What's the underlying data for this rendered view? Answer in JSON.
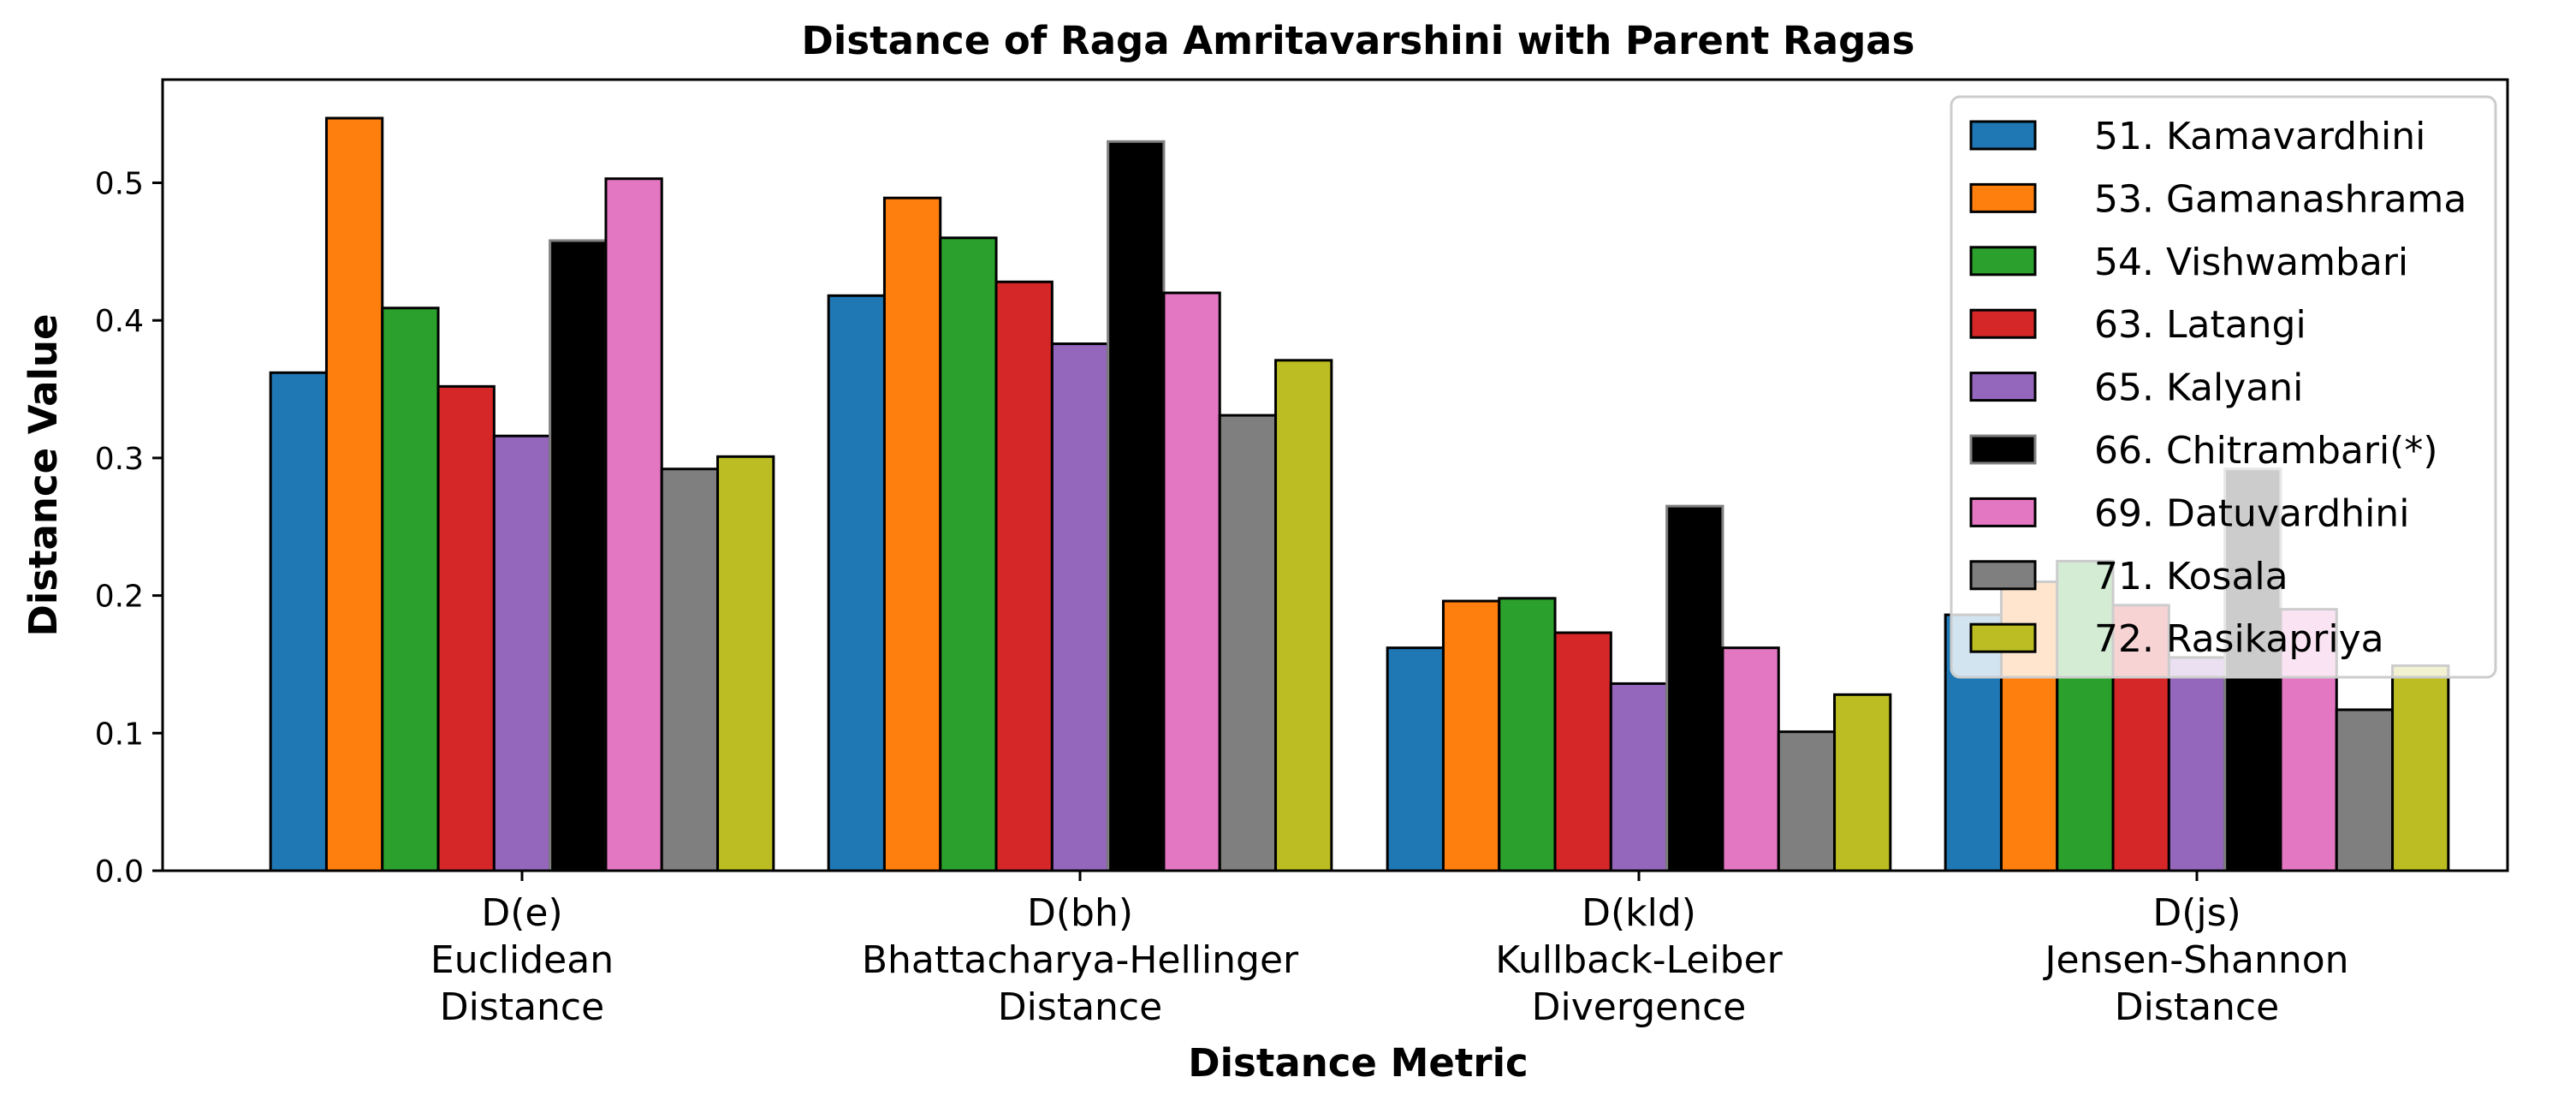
{
  "chart_data": {
    "type": "bar",
    "title": "Distance of Raga Amritavarshini with Parent Ragas",
    "xlabel": "Distance Metric",
    "ylabel": "Distance Value",
    "ylim": [
      0,
      0.575
    ],
    "yticks": [
      "0.0",
      "0.1",
      "0.2",
      "0.3",
      "0.4",
      "0.5"
    ],
    "ytick_values": [
      0,
      0.1,
      0.2,
      0.3,
      0.4,
      0.5
    ],
    "categories": [
      [
        "D(e)",
        "Euclidean",
        "Distance"
      ],
      [
        "D(bh)",
        "Bhattacharya-Hellinger",
        "Distance"
      ],
      [
        "D(kld)",
        "Kullback-Leiber",
        "Divergence"
      ],
      [
        "D(js)",
        "Jensen-Shannon",
        "Distance"
      ]
    ],
    "legend_position": "top-right",
    "grid": false,
    "series": [
      {
        "name": "51. Kamavardhini",
        "color": "#1f77b4",
        "edge": "#000000",
        "values": [
          0.362,
          0.418,
          0.162,
          0.186
        ]
      },
      {
        "name": "53. Gamanashrama",
        "color": "#ff7f0e",
        "edge": "#000000",
        "values": [
          0.547,
          0.489,
          0.196,
          0.21
        ]
      },
      {
        "name": "54. Vishwambari",
        "color": "#2ca02c",
        "edge": "#000000",
        "values": [
          0.409,
          0.46,
          0.198,
          0.225
        ]
      },
      {
        "name": "63. Latangi",
        "color": "#d62728",
        "edge": "#000000",
        "values": [
          0.352,
          0.428,
          0.173,
          0.193
        ]
      },
      {
        "name": "65. Kalyani",
        "color": "#9467bd",
        "edge": "#000000",
        "values": [
          0.316,
          0.383,
          0.136,
          0.155
        ]
      },
      {
        "name": "66. Chitrambari(*)",
        "color": "#000000",
        "edge": "#808080",
        "values": [
          0.458,
          0.53,
          0.265,
          0.292
        ]
      },
      {
        "name": "69. Datuvardhini",
        "color": "#e377c2",
        "edge": "#000000",
        "values": [
          0.503,
          0.42,
          0.162,
          0.19
        ]
      },
      {
        "name": "71. Kosala",
        "color": "#7f7f7f",
        "edge": "#000000",
        "values": [
          0.292,
          0.331,
          0.101,
          0.117
        ]
      },
      {
        "name": "72. Rasikapriya",
        "color": "#bcbd22",
        "edge": "#000000",
        "values": [
          0.301,
          0.371,
          0.128,
          0.149
        ]
      }
    ]
  }
}
